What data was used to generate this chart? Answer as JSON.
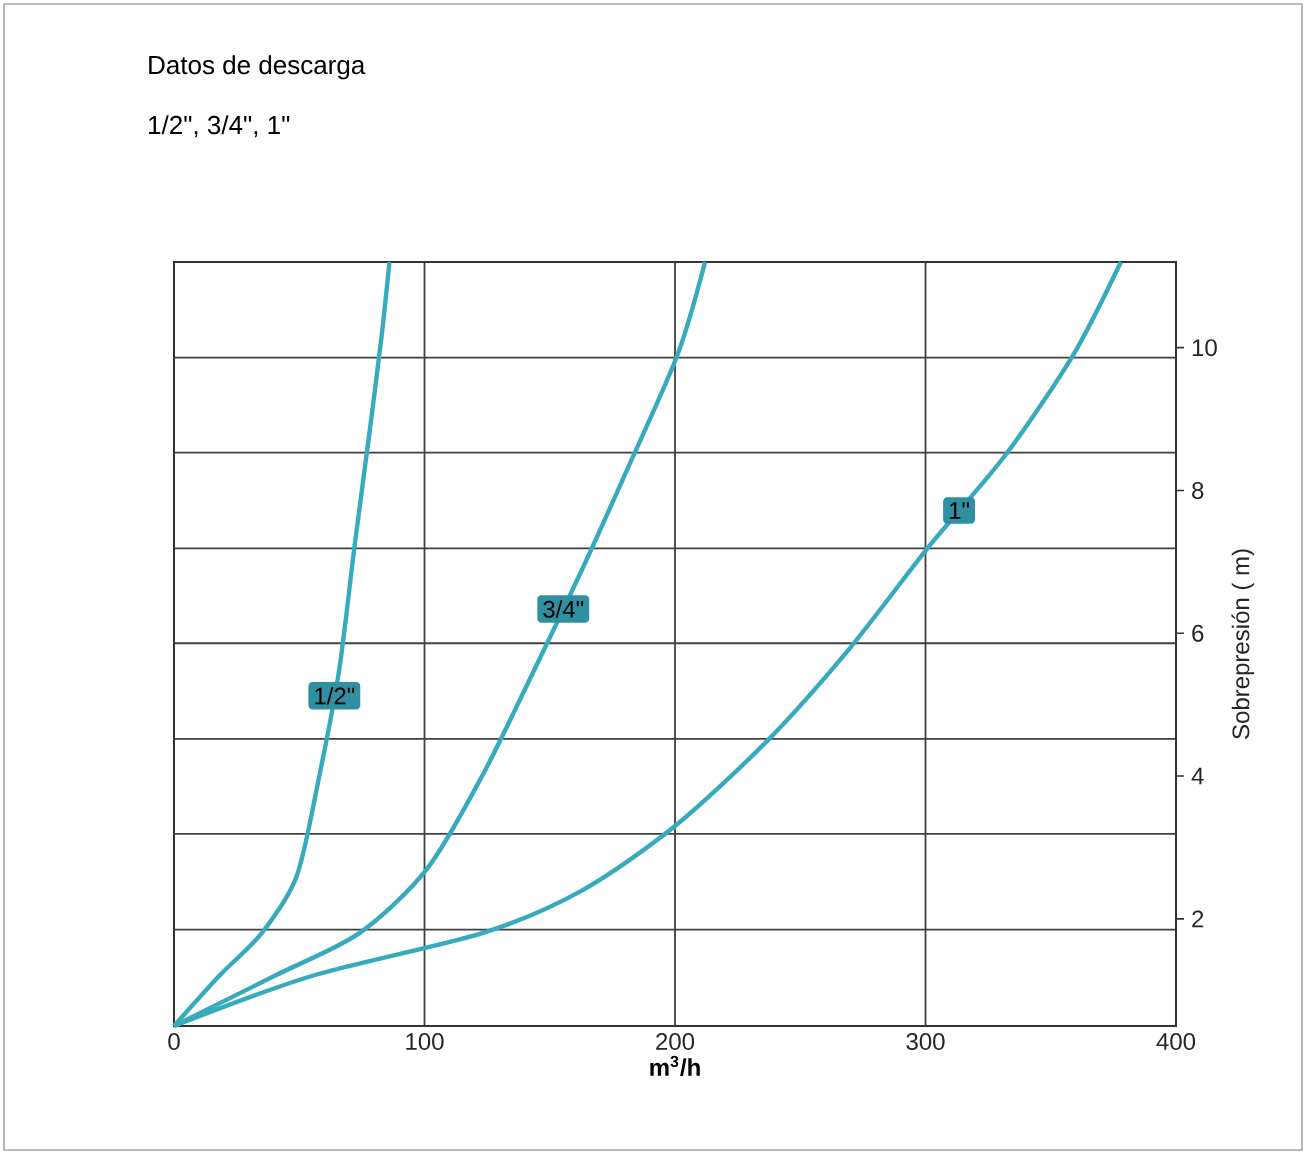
{
  "chart_data": {
    "type": "line",
    "title": "Datos de descarga",
    "subtitle": "1/2\", 3/4\", 1\"",
    "xlabel": "m$^{3}$/h",
    "ylabel": "Sobrepresión  ( m)",
    "xlim": [
      0,
      400
    ],
    "xticks": [
      0,
      100,
      200,
      300,
      400
    ],
    "ylim": [
      0.5,
      11.2
    ],
    "yticks": [
      {
        "value": 1.85,
        "label": null
      },
      {
        "value": 3.19,
        "label": null
      },
      {
        "value": 4.52,
        "label": null
      },
      {
        "value": 5.86,
        "label": null
      },
      {
        "value": 7.19,
        "label": null
      },
      {
        "value": 8.53,
        "label": null
      },
      {
        "value": 9.86,
        "label": null
      },
      2,
      4,
      6,
      8,
      10
    ],
    "grid": true,
    "marker": "none",
    "line_style": "solid",
    "series": [
      {
        "name": "1/2\"",
        "color": "#38aabd",
        "x": [
          0,
          18,
          35,
          49,
          58,
          66,
          72,
          78,
          83,
          86
        ],
        "values": [
          0.5,
          1.2,
          1.8,
          2.6,
          4.0,
          5.5,
          7.2,
          8.8,
          10.2,
          11.2
        ]
      },
      {
        "name": "3/4\"",
        "color": "#38aabd",
        "x": [
          0,
          40,
          74,
          101,
          123,
          144,
          163,
          181,
          201,
          212
        ],
        "values": [
          0.5,
          1.2,
          1.8,
          2.7,
          4.0,
          5.5,
          6.9,
          8.3,
          9.9,
          11.2
        ]
      },
      {
        "name": "1\"",
        "color": "#38aabd",
        "x": [
          0,
          55,
          123,
          163,
          200,
          237,
          270,
          301,
          332,
          359,
          378
        ],
        "values": [
          0.5,
          1.2,
          1.8,
          2.4,
          3.3,
          4.5,
          5.8,
          7.2,
          8.5,
          9.9,
          11.2
        ]
      }
    ]
  }
}
